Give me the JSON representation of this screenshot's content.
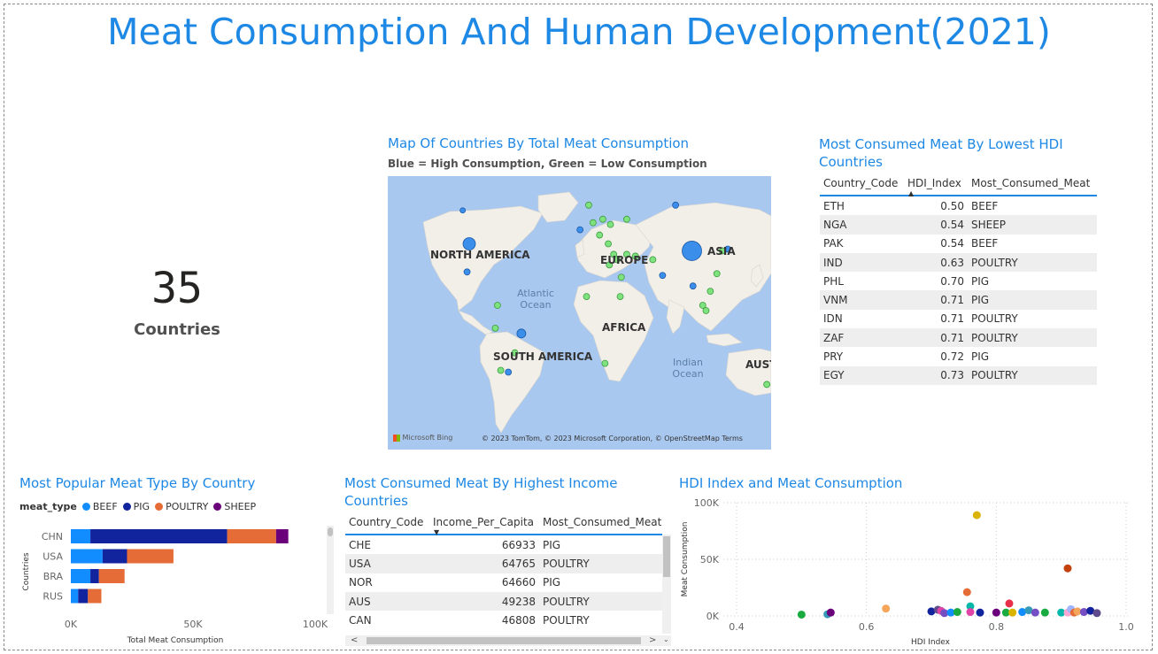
{
  "title": "Meat Consumption And Human Development(2021)",
  "card": {
    "value": "35",
    "label": "Countries"
  },
  "map": {
    "title": "Map Of Countries By Total Meat Consumption",
    "subtitle": "Blue = High Consumption, Green = Low Consumption",
    "labels": [
      "NORTH AMERICA",
      "EUROPE",
      "ASIA",
      "AFRICA",
      "SOUTH AMERICA",
      "AUST"
    ],
    "oceans": [
      "Atlantic Ocean",
      "Indian Ocean"
    ],
    "bing": "Microsoft Bing",
    "credit": "© 2023 TomTom, © 2023 Microsoft Corporation, © OpenStreetMap Terms",
    "high_color": "#3b8eea",
    "low_color": "#7ee37e"
  },
  "table_hdi": {
    "title": "Most Consumed Meat By Lowest HDI Countries",
    "columns": [
      "Country_Code",
      "HDI_Index",
      "Most_Consumed_Meat"
    ],
    "rows": [
      [
        "ETH",
        "0.50",
        "BEEF"
      ],
      [
        "NGA",
        "0.54",
        "SHEEP"
      ],
      [
        "PAK",
        "0.54",
        "BEEF"
      ],
      [
        "IND",
        "0.63",
        "POULTRY"
      ],
      [
        "PHL",
        "0.70",
        "PIG"
      ],
      [
        "VNM",
        "0.71",
        "PIG"
      ],
      [
        "IDN",
        "0.71",
        "POULTRY"
      ],
      [
        "ZAF",
        "0.71",
        "POULTRY"
      ],
      [
        "PRY",
        "0.72",
        "PIG"
      ],
      [
        "EGY",
        "0.73",
        "POULTRY"
      ]
    ]
  },
  "table_income": {
    "title": "Most Consumed Meat By Highest Income Countries",
    "columns": [
      "Country_Code",
      "Income_Per_Capita",
      "Most_Consumed_Meat"
    ],
    "rows": [
      [
        "CHE",
        "66933",
        "PIG"
      ],
      [
        "USA",
        "64765",
        "POULTRY"
      ],
      [
        "NOR",
        "64660",
        "PIG"
      ],
      [
        "AUS",
        "49238",
        "POULTRY"
      ],
      [
        "CAN",
        "46808",
        "POULTRY"
      ]
    ]
  },
  "bar_chart_title": "Most Popular Meat Type By Country",
  "scatter_title": "HDI Index and Meat Consumption",
  "chart_data": [
    {
      "type": "bar",
      "orientation": "horizontal-stacked",
      "legend_title": "meat_type",
      "categories": [
        "CHN",
        "USA",
        "BRA",
        "RUS"
      ],
      "series": [
        {
          "name": "BEEF",
          "color": "#118dff",
          "values": [
            8000,
            13000,
            8000,
            3000
          ]
        },
        {
          "name": "PIG",
          "color": "#12239e",
          "values": [
            56000,
            10000,
            3500,
            4000
          ]
        },
        {
          "name": "POULTRY",
          "color": "#e66c37",
          "values": [
            20000,
            19000,
            10500,
            5500
          ]
        },
        {
          "name": "SHEEP",
          "color": "#6b007b",
          "values": [
            5000,
            0,
            0,
            0
          ]
        }
      ],
      "xlabel": "Total Meat Consumption",
      "ylabel": "Countries",
      "xticks": [
        "0K",
        "50K",
        "100K"
      ],
      "xlim": [
        0,
        100000
      ]
    },
    {
      "type": "scatter",
      "xlabel": "HDI Index",
      "ylabel": "Meat Consumption",
      "xticks": [
        "0.4",
        "0.6",
        "0.8",
        "1.0"
      ],
      "yticks": [
        "0K",
        "50K",
        "100K"
      ],
      "xlim": [
        0.4,
        1.0
      ],
      "ylim": [
        0,
        100000
      ],
      "points": [
        {
          "x": 0.5,
          "y": 1200,
          "color": "#1aab40"
        },
        {
          "x": 0.54,
          "y": 1500,
          "color": "#3599b8"
        },
        {
          "x": 0.545,
          "y": 3000,
          "color": "#6b007b"
        },
        {
          "x": 0.63,
          "y": 6500,
          "color": "#f5a65b"
        },
        {
          "x": 0.7,
          "y": 4000,
          "color": "#12239e"
        },
        {
          "x": 0.71,
          "y": 5500,
          "color": "#5f4b8b"
        },
        {
          "x": 0.715,
          "y": 4500,
          "color": "#e044a7"
        },
        {
          "x": 0.72,
          "y": 2500,
          "color": "#744ec2"
        },
        {
          "x": 0.73,
          "y": 3000,
          "color": "#118dff"
        },
        {
          "x": 0.74,
          "y": 3500,
          "color": "#1aab40"
        },
        {
          "x": 0.755,
          "y": 21000,
          "color": "#e66c37"
        },
        {
          "x": 0.76,
          "y": 8500,
          "color": "#01b8aa"
        },
        {
          "x": 0.76,
          "y": 3500,
          "color": "#e044a7"
        },
        {
          "x": 0.77,
          "y": 89000,
          "color": "#d9b300"
        },
        {
          "x": 0.775,
          "y": 3000,
          "color": "#12239e"
        },
        {
          "x": 0.8,
          "y": 3000,
          "color": "#6b007b"
        },
        {
          "x": 0.815,
          "y": 3000,
          "color": "#1aab40"
        },
        {
          "x": 0.82,
          "y": 11000,
          "color": "#e8304a"
        },
        {
          "x": 0.825,
          "y": 3000,
          "color": "#d9b300"
        },
        {
          "x": 0.84,
          "y": 3500,
          "color": "#118dff"
        },
        {
          "x": 0.85,
          "y": 5000,
          "color": "#3599b8"
        },
        {
          "x": 0.86,
          "y": 3000,
          "color": "#744ec2"
        },
        {
          "x": 0.875,
          "y": 3000,
          "color": "#1aab40"
        },
        {
          "x": 0.9,
          "y": 3000,
          "color": "#01b8aa"
        },
        {
          "x": 0.91,
          "y": 42000,
          "color": "#c4420e"
        },
        {
          "x": 0.91,
          "y": 3000,
          "color": "#f8a8d2"
        },
        {
          "x": 0.915,
          "y": 6000,
          "color": "#a0b5ff"
        },
        {
          "x": 0.92,
          "y": 3000,
          "color": "#e66c37"
        },
        {
          "x": 0.925,
          "y": 4000,
          "color": "#f5a65b"
        },
        {
          "x": 0.935,
          "y": 3500,
          "color": "#744ec2"
        },
        {
          "x": 0.945,
          "y": 4500,
          "color": "#12239e"
        },
        {
          "x": 0.955,
          "y": 2500,
          "color": "#5f4b8b"
        }
      ]
    },
    {
      "type": "scatter",
      "description": "map bubbles",
      "points_high": [
        {
          "lon": -100,
          "lat": 39,
          "size": 7
        },
        {
          "lon": 105,
          "lat": 35,
          "size": 11
        },
        {
          "lon": -52,
          "lat": -12,
          "size": 5
        },
        {
          "lon": 90,
          "lat": 61,
          "size": 3.5
        },
        {
          "lon": -106,
          "lat": 58,
          "size": 3
        },
        {
          "lon": 138,
          "lat": 36,
          "size": 3.5
        },
        {
          "lon": 2,
          "lat": 47,
          "size": 3.5
        },
        {
          "lon": -102,
          "lat": 23,
          "size": 3.5
        },
        {
          "lon": 78,
          "lat": 21,
          "size": 3.5
        },
        {
          "lon": 106,
          "lat": 15,
          "size": 3.5
        },
        {
          "lon": -64,
          "lat": -34,
          "size": 3.5
        }
      ],
      "points_low": [
        {
          "lon": 10,
          "lat": 61
        },
        {
          "lon": 14,
          "lat": 51
        },
        {
          "lon": 23,
          "lat": 53
        },
        {
          "lon": 30,
          "lat": 50
        },
        {
          "lon": 45,
          "lat": 53
        },
        {
          "lon": 20,
          "lat": 44
        },
        {
          "lon": 28,
          "lat": 39
        },
        {
          "lon": 33,
          "lat": 33
        },
        {
          "lon": 29,
          "lat": 27
        },
        {
          "lon": 36,
          "lat": 30
        },
        {
          "lon": 45,
          "lat": 33
        },
        {
          "lon": 53,
          "lat": 32
        },
        {
          "lon": 40,
          "lat": 20
        },
        {
          "lon": 69,
          "lat": 30
        },
        {
          "lon": 39,
          "lat": 9
        },
        {
          "lon": 8,
          "lat": 9
        },
        {
          "lon": 122,
          "lat": 12
        },
        {
          "lon": 118,
          "lat": 1
        },
        {
          "lon": 115,
          "lat": 4
        },
        {
          "lon": 133,
          "lat": 35
        },
        {
          "lon": 128,
          "lat": 22
        },
        {
          "lon": -74,
          "lat": 4
        },
        {
          "lon": -76,
          "lat": -9
        },
        {
          "lon": -58,
          "lat": -23
        },
        {
          "lon": -71,
          "lat": -33
        },
        {
          "lon": 25,
          "lat": -29
        },
        {
          "lon": 174,
          "lat": -41
        }
      ]
    }
  ]
}
